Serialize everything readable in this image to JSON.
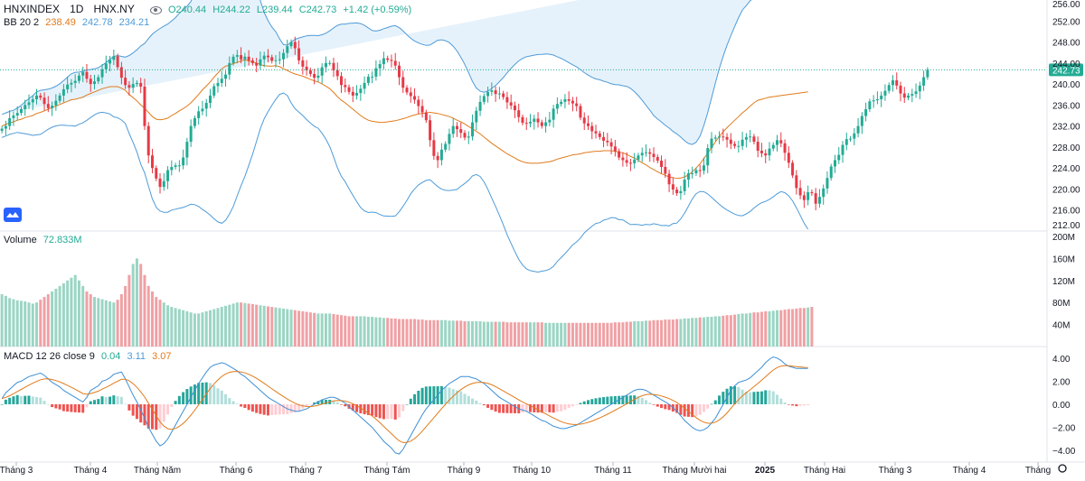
{
  "header": {
    "symbol": "HNXINDEX",
    "interval": "1D",
    "exchange": "HNX.NY",
    "open": "O240.44",
    "high": "H244.22",
    "low": "L239.44",
    "close": "C242.73",
    "change": "+1.42 (+0.59%)"
  },
  "bb_legend": {
    "label": "BB 20 2",
    "basis": "238.49",
    "upper": "242.78",
    "lower": "234.21"
  },
  "volume_legend": {
    "label": "Volume",
    "value": "72.833M"
  },
  "macd_legend": {
    "label": "MACD 12 26 close 9",
    "hist": "0.04",
    "macd": "3.11",
    "signal": "3.07"
  },
  "price_badge": "242.73",
  "colors": {
    "up": "#22ab94",
    "down": "#e63946",
    "up_vol": "#9bd5c3",
    "down_vol": "#f0a0a4",
    "bb_basis": "#e07b1c",
    "bb_band": "#4e9bd8",
    "bb_fill": "#e6f2fb",
    "macd_line": "#3d8fd6",
    "signal_line": "#e07b1c",
    "grid": "#f0f3fa"
  },
  "chart_data": [
    {
      "type": "candlestick",
      "name": "price",
      "ylim": [
        212,
        256
      ],
      "yticks": [
        "212.00",
        "216.00",
        "220.00",
        "224.00",
        "228.00",
        "232.00",
        "236.00",
        "240.00",
        "244.00",
        "248.00",
        "252.00",
        "256.00"
      ],
      "close_series": [
        231.5,
        232,
        233.5,
        234,
        234.5,
        235.2,
        236,
        236.5,
        237.1,
        237.8,
        237.4,
        236.2,
        235.4,
        235.9,
        236.8,
        237.8,
        239,
        239.9,
        240.2,
        240.6,
        241.6,
        242.3,
        241,
        240,
        240.5,
        241.3,
        242.8,
        243.9,
        244.6,
        245.3,
        243.2,
        241.2,
        239.8,
        239.3,
        240,
        240.2,
        239.5,
        232,
        226.4,
        224,
        222,
        220.4,
        221.5,
        223.6,
        224.2,
        224.5,
        224.5,
        226,
        229,
        232,
        233.5,
        234.8,
        235.3,
        236.4,
        237.8,
        239.6,
        240.2,
        241,
        241.8,
        244,
        245.2,
        245.5,
        244.7,
        245.2,
        244.5,
        244,
        243.5,
        244.7,
        245.4,
        245.1,
        244.4,
        244.5,
        244.7,
        245.9,
        247.2,
        248,
        246.8,
        244.5,
        243.3,
        242.6,
        241.9,
        241.2,
        241.6,
        243.2,
        244,
        244,
        242.6,
        241.5,
        239.8,
        239.4,
        238.5,
        237.8,
        238.3,
        239.1,
        240.2,
        241.4,
        241.4,
        243,
        243.8,
        244.9,
        244.6,
        244.4,
        243.5,
        241.3,
        239.3,
        238.4,
        237.7,
        237,
        235.8,
        234.6,
        233.1,
        229.3,
        226.3,
        225.5,
        227.5,
        228.6,
        230.5,
        232,
        231.4,
        230.7,
        229.8,
        230,
        232.7,
        234.9,
        236.6,
        237.7,
        238.5,
        238.8,
        238.1,
        238.2,
        237.5,
        236.5,
        235.9,
        235,
        233.7,
        232.6,
        232.5,
        232.8,
        233.4,
        232.7,
        232,
        232.7,
        233.2,
        235.3,
        236.2,
        236.6,
        237.1,
        236.8,
        236.3,
        235.8,
        233.6,
        232.5,
        232,
        231,
        230.6,
        229.9,
        229.2,
        228.9,
        228.1,
        227.2,
        226,
        225.5,
        225,
        224.9,
        225.6,
        226.4,
        226.9,
        227,
        226.7,
        226.1,
        225.4,
        224.2,
        222.9,
        220.9,
        219.9,
        219.2,
        219.6,
        221.8,
        223,
        223,
        223.6,
        223.5,
        224.5,
        227.8,
        229.6,
        229.8,
        230,
        229.9,
        229.4,
        228.6,
        228.2,
        228.2,
        229.4,
        229.9,
        230,
        229,
        227.3,
        226.8,
        226.4,
        227.7,
        228.4,
        229.3,
        228.7,
        226.9,
        225,
        222.6,
        220.2,
        218.8,
        217.9,
        219.4,
        219.2,
        217.2,
        218.5,
        220.1,
        222.1,
        224.3,
        225.5,
        226.5,
        228.4,
        229.5,
        229.6,
        230.6,
        232,
        233.9,
        235.2,
        236.7,
        236.9,
        237.1,
        237.8,
        238.7,
        239.8,
        240.7,
        239.7,
        238.2,
        237.4,
        237.8,
        238.1,
        238.6,
        239.7,
        241.3,
        242.7
      ]
    },
    {
      "type": "line",
      "name": "bb_basis",
      "values": [
        232,
        232.3,
        232.6,
        232.8,
        233.1,
        233.3,
        233.6,
        233.8,
        234,
        234.4,
        234.6,
        234.9,
        235.2,
        235.5,
        235.8,
        236.1,
        236.4,
        236.7,
        237,
        237.1,
        237.3,
        237.5,
        237.9,
        238.2,
        238.5,
        238.8,
        239.1,
        239.3,
        239.5,
        239.5,
        239.5,
        239.2,
        238.8,
        238,
        237.4,
        236.8,
        236,
        235.4,
        234.6,
        233.8,
        233.3,
        233.2,
        233.3,
        233.5,
        234,
        234.4,
        234.9,
        235.3,
        235.8,
        236.4,
        237.2,
        238,
        238.9,
        239.6,
        240.4,
        241.3,
        242.1,
        242.9,
        243.4,
        243.6,
        243.9,
        244.1,
        244.4,
        244.6,
        244.4,
        244.2,
        244,
        243.7,
        243.5,
        243.4,
        243.4,
        243.5,
        243.3,
        242.9,
        242.6,
        242.2,
        241.9,
        241.7,
        241.5,
        241.2,
        240.9,
        240.6,
        240.4,
        240,
        239.6,
        239.1,
        238.4,
        237.6,
        236.9,
        236.4,
        235.8,
        235.2,
        234.6,
        234,
        233.5,
        233.1,
        232.9,
        232.8,
        232.7,
        232.7,
        232.8,
        232.9,
        233,
        233.2,
        233.4,
        233.6,
        233.9,
        234.1,
        234.3,
        234.4,
        234.5,
        234.6,
        234.5,
        234.4,
        234.2,
        234,
        233.8,
        233.5,
        233.1,
        232.8,
        232.4,
        231.9,
        231.5,
        231,
        230.5,
        229.9,
        229.3,
        228.7,
        228.2,
        227.7,
        227.2,
        226.7,
        226.3,
        225.9,
        225.5,
        225.2,
        225,
        224.9,
        224.9,
        224.9,
        225,
        225.1,
        225.2,
        225.4,
        225.7,
        225.9,
        226.1,
        226.3,
        226.5,
        226.6,
        226.7,
        226.9,
        227,
        227.1,
        227.2,
        227.2,
        227.3,
        227.3,
        227.3,
        227.2,
        227,
        226.9,
        226.6,
        226.2,
        225.9,
        225.5,
        225,
        224.6,
        224.1,
        223.7,
        223.3,
        222.9,
        222.6,
        222.3,
        222.2,
        222,
        222.1,
        222.3,
        222.7,
        223.3,
        224,
        224.8,
        225.8,
        226.8,
        227.9,
        229,
        230,
        230.9,
        231.7,
        232.4,
        233.1,
        233.8,
        234.5,
        235.1,
        235.8,
        236.4,
        236.9,
        237.1,
        237.3,
        237.5,
        237.6,
        237.7,
        237.8,
        237.9,
        238,
        238.1,
        238.2,
        238.3,
        238.4,
        238.5
      ]
    },
    {
      "type": "histogram",
      "name": "volume",
      "ylim": [
        0,
        200
      ],
      "yticks": [
        "40M",
        "80M",
        "120M",
        "160M",
        "200M"
      ],
      "values": [
        95,
        92,
        88,
        86,
        84,
        83,
        82,
        80,
        78,
        80,
        85,
        90,
        95,
        100,
        105,
        110,
        115,
        120,
        125,
        130,
        120,
        110,
        100,
        95,
        90,
        88,
        86,
        84,
        82,
        80,
        85,
        95,
        110,
        130,
        150,
        160,
        150,
        130,
        110,
        100,
        90,
        85,
        80,
        75,
        72,
        70,
        68,
        66,
        64,
        62,
        60,
        60,
        62,
        64,
        66,
        68,
        70,
        72,
        74,
        76,
        78,
        80,
        80,
        79,
        78,
        77,
        76,
        75,
        74,
        73,
        72,
        71,
        70,
        69,
        68,
        67,
        66,
        65,
        64,
        63,
        62,
        61,
        60,
        60,
        60,
        60,
        59,
        58,
        57,
        56,
        55,
        55,
        55,
        55,
        55,
        54,
        54,
        53,
        53,
        52,
        52,
        51,
        51,
        50,
        50,
        50,
        50,
        50,
        49,
        49,
        48,
        48,
        48,
        48,
        48,
        48,
        47,
        47,
        47,
        47,
        46,
        46,
        46,
        46,
        46,
        45,
        45,
        45,
        45,
        45,
        45,
        44,
        44,
        44,
        44,
        44,
        44,
        44,
        44,
        44,
        44,
        43,
        43,
        43,
        43,
        43,
        43,
        43,
        43,
        43,
        43,
        43,
        43,
        43,
        43,
        43,
        43,
        43,
        43,
        44,
        44,
        44,
        45,
        45,
        46,
        46,
        46,
        47,
        47,
        48,
        48,
        48,
        49,
        49,
        49,
        50,
        50,
        51,
        51,
        52,
        52,
        53,
        53,
        54,
        54,
        55,
        55,
        56,
        57,
        57,
        58,
        59,
        60,
        60,
        61,
        62,
        62,
        63,
        64,
        64,
        65,
        66,
        66,
        67,
        68,
        68,
        69,
        70,
        70,
        71,
        72
      ]
    },
    {
      "type": "line",
      "name": "macd",
      "ylim": [
        -5,
        5
      ],
      "yticks": [
        "−4.00",
        "−2.00",
        "0.00",
        "2.00",
        "4.00"
      ],
      "values": [
        0.5,
        1,
        1.3,
        1.6,
        1.9,
        2,
        2.2,
        2.4,
        2.5,
        2.6,
        2.7,
        2.5,
        2.2,
        1.9,
        1.7,
        1.5,
        1.2,
        1,
        0.8,
        0.6,
        0.4,
        0.2,
        0.6,
        1.2,
        1.4,
        1.6,
        2,
        2.1,
        2.3,
        2.6,
        2.7,
        2.8,
        2.2,
        1.5,
        0.8,
        0.2,
        -0.5,
        -1.2,
        -2,
        -2.6,
        -3.2,
        -3.6,
        -3.4,
        -3,
        -2.4,
        -1.8,
        -1.2,
        -0.6,
        0,
        0.6,
        1.2,
        1.8,
        2.3,
        2.8,
        3.2,
        3.4,
        3.5,
        3.6,
        3.5,
        3.3,
        3.1,
        2.9,
        2.6,
        2.4,
        2.1,
        1.8,
        1.5,
        1.2,
        0.9,
        0.6,
        0.4,
        0.2,
        0,
        -0.2,
        -0.4,
        -0.5,
        -0.6,
        -0.6,
        -0.5,
        -0.4,
        -0.2,
        0,
        0.2,
        0.4,
        0.5,
        0.6,
        0.6,
        0.5,
        0.3,
        0.1,
        -0.2,
        -0.5,
        -0.8,
        -1.1,
        -1.4,
        -1.7,
        -2,
        -2.4,
        -2.8,
        -3.2,
        -3.5,
        -3.8,
        -4.2,
        -4.3,
        -3.9,
        -3.3,
        -2.7,
        -2.1,
        -1.5,
        -0.9,
        -0.4,
        0,
        0.4,
        0.8,
        1.2,
        1.5,
        1.8,
        2,
        2.2,
        2.4,
        2.4,
        2.4,
        2.3,
        2.2,
        2,
        1.8,
        1.5,
        1.2,
        0.9,
        0.6,
        0.4,
        0.2,
        0,
        -0.2,
        -0.4,
        -0.5,
        -0.6,
        -0.8,
        -1,
        -1.2,
        -1.4,
        -1.5,
        -1.7,
        -1.9,
        -2,
        -2.1,
        -2.1,
        -2,
        -1.9,
        -1.8,
        -1.6,
        -1.4,
        -1.2,
        -1,
        -0.8,
        -0.6,
        -0.4,
        -0.2,
        0,
        0.2,
        0.4,
        0.6,
        0.8,
        1,
        1.2,
        1.3,
        1.3,
        1.2,
        1,
        0.8,
        0.6,
        0.4,
        0.2,
        0,
        -0.3,
        -0.6,
        -1,
        -1.4,
        -1.7,
        -2,
        -2.2,
        -2.3,
        -2.2,
        -2,
        -1.6,
        -1.2,
        -0.6,
        0,
        0.6,
        1.2,
        1.6,
        1.9,
        2,
        2.1,
        2.3,
        2.6,
        2.9,
        3.2,
        3.6,
        3.9,
        4.1,
        4,
        3.8,
        3.5,
        3.3,
        3.2,
        3.1,
        3.1,
        3.1,
        3.1
      ]
    }
  ],
  "x_labels": [
    "Tháng 3",
    "Tháng 4",
    "Tháng Năm",
    "Tháng 6",
    "Tháng 7",
    "Tháng Tám",
    "Tháng 9",
    "Tháng 10",
    "Tháng 11",
    "Tháng Mười hai",
    "2025",
    "Tháng Hai",
    "Tháng 3",
    "Tháng 4",
    "Tháng"
  ]
}
